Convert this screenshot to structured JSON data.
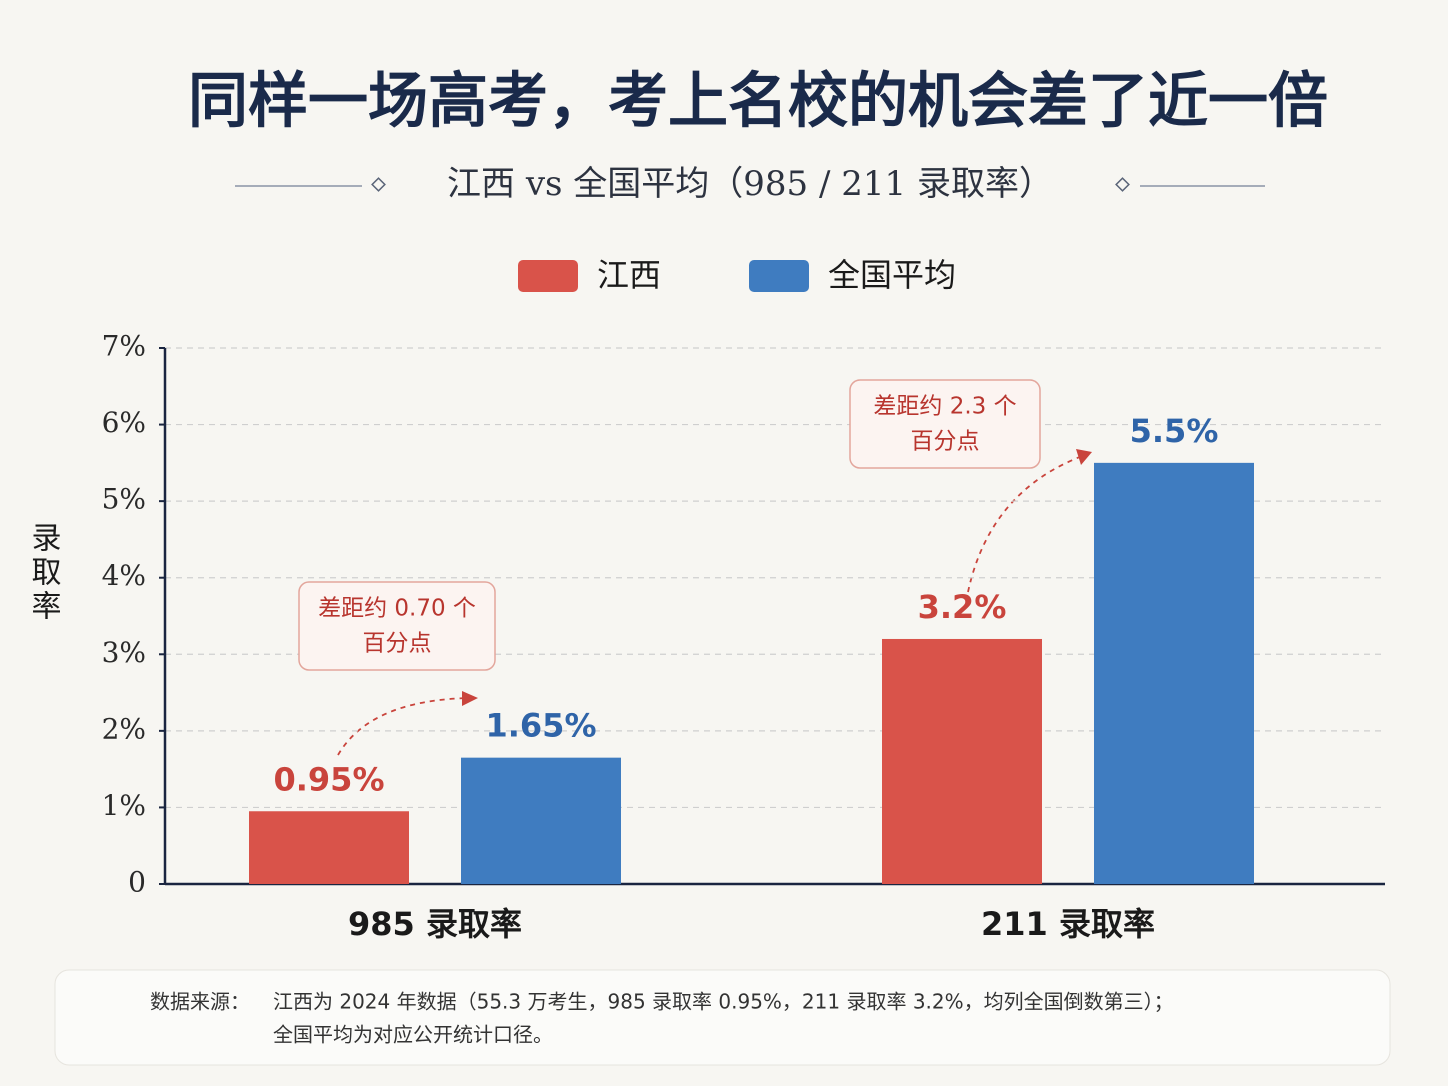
{
  "chart_data": {
    "type": "bar",
    "title": "同样一场高考，考上名校的机会差了近一倍",
    "subtitle": "江西 vs 全国平均（985 / 211 录取率）",
    "y_label": "录取率",
    "categories": [
      "985 录取率",
      "211 录取率"
    ],
    "series": [
      {
        "name": "江西",
        "color": "#d9534a",
        "values": [
          0.95,
          3.2
        ],
        "value_labels": [
          "0.95%",
          "3.2%"
        ]
      },
      {
        "name": "全国平均",
        "color": "#3f7cc0",
        "values": [
          1.65,
          5.5
        ],
        "value_labels": [
          "1.65%",
          "5.5%"
        ]
      }
    ],
    "ylim": [
      0,
      7
    ],
    "yticks": [
      0,
      {
        "value": 1,
        "label": "1%"
      },
      {
        "value": 2,
        "label": "2%"
      },
      {
        "value": 3,
        "label": "3%"
      },
      {
        "value": 4,
        "label": "4%"
      },
      {
        "value": 5,
        "label": "5%"
      },
      {
        "value": 6,
        "label": "6%"
      },
      {
        "value": 7,
        "label": "7%"
      }
    ],
    "grid": true,
    "legend": "top",
    "annotations": [
      {
        "lines": [
          "差距约 0.70 个",
          "百分点"
        ]
      },
      {
        "lines": [
          "差距约 2.3 个",
          "百分点"
        ]
      }
    ],
    "source_label": "数据来源：",
    "source_lines": [
      "江西为 2024 年数据（55.3 万考生，985 录取率 0.95%，211 录取率 3.2%，均列全国倒数第三）；",
      "全国平均为对应公开统计口径。"
    ]
  }
}
